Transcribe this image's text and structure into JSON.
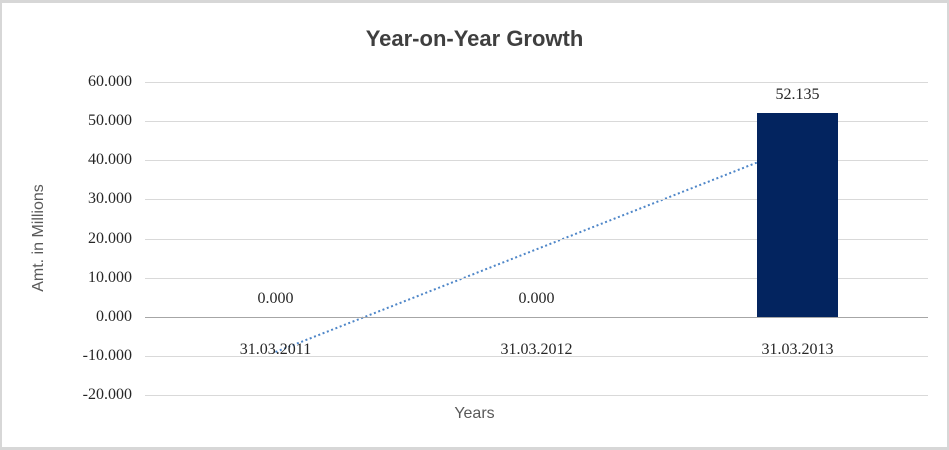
{
  "chart": {
    "title": "Year-on-Year Growth",
    "y_axis_title": "Amt. in Millions",
    "x_axis_title": "Years"
  },
  "chart_data": {
    "type": "bar",
    "title": "Year-on-Year Growth",
    "xlabel": "Years",
    "ylabel": "Amt. in Millions",
    "categories": [
      "31.03.2011",
      "31.03.2012",
      "31.03.2013"
    ],
    "values": [
      0,
      0,
      52.135
    ],
    "data_labels": [
      "0.000",
      "0.000",
      "52.135"
    ],
    "ylim": [
      -20,
      60
    ],
    "y_tick_step": 10,
    "y_ticks": [
      {
        "label": "60.000",
        "value": 60
      },
      {
        "label": "50.000",
        "value": 50
      },
      {
        "label": "40.000",
        "value": 40
      },
      {
        "label": "30.000",
        "value": 30
      },
      {
        "label": "20.000",
        "value": 20
      },
      {
        "label": "10.000",
        "value": 10
      },
      {
        "label": "0.000",
        "value": 0
      },
      {
        "label": "-10.000",
        "value": -10
      },
      {
        "label": "-20.000",
        "value": -20
      }
    ],
    "grid": true,
    "legend": false,
    "bar_color": "#03245f",
    "trendline": {
      "style": "dotted",
      "color": "#4e86c8",
      "points": [
        {
          "category_index": 0,
          "value": -9.0
        },
        {
          "category_index": 2,
          "value": 43.5
        }
      ]
    },
    "colors": {
      "gridline": "#d9d9d9",
      "axis_line": "#a6a6a6",
      "title_text": "#3f3f3f",
      "axis_title_text": "#595959",
      "label_text": "#262626"
    }
  }
}
